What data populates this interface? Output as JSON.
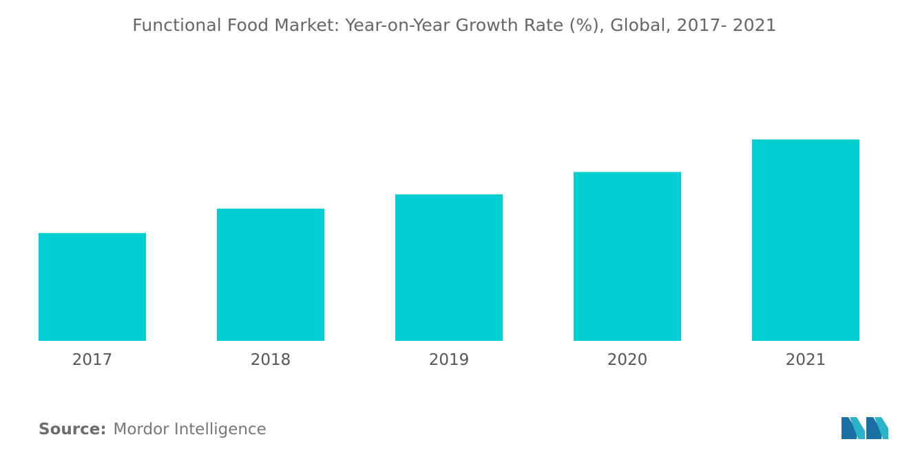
{
  "chart_data": {
    "type": "bar",
    "title": "Functional Food Market: Year-on-Year Growth Rate (%), Global, 2017- 2021",
    "categories": [
      "2017",
      "2018",
      "2019",
      "2020",
      "2021"
    ],
    "values": [
      5.3,
      6.5,
      7.2,
      8.3,
      9.9
    ],
    "ylim": [
      0,
      12
    ],
    "xlabel": "",
    "ylabel": "",
    "grid": false,
    "colors": {
      "bar": "#00CED1"
    }
  },
  "source": {
    "label": "Source:",
    "text": "Mordor Intelligence"
  },
  "logo": {
    "icon": "mordor-intelligence-logo-icon",
    "colors": [
      "#1a6fa3",
      "#2ab3c9"
    ]
  }
}
